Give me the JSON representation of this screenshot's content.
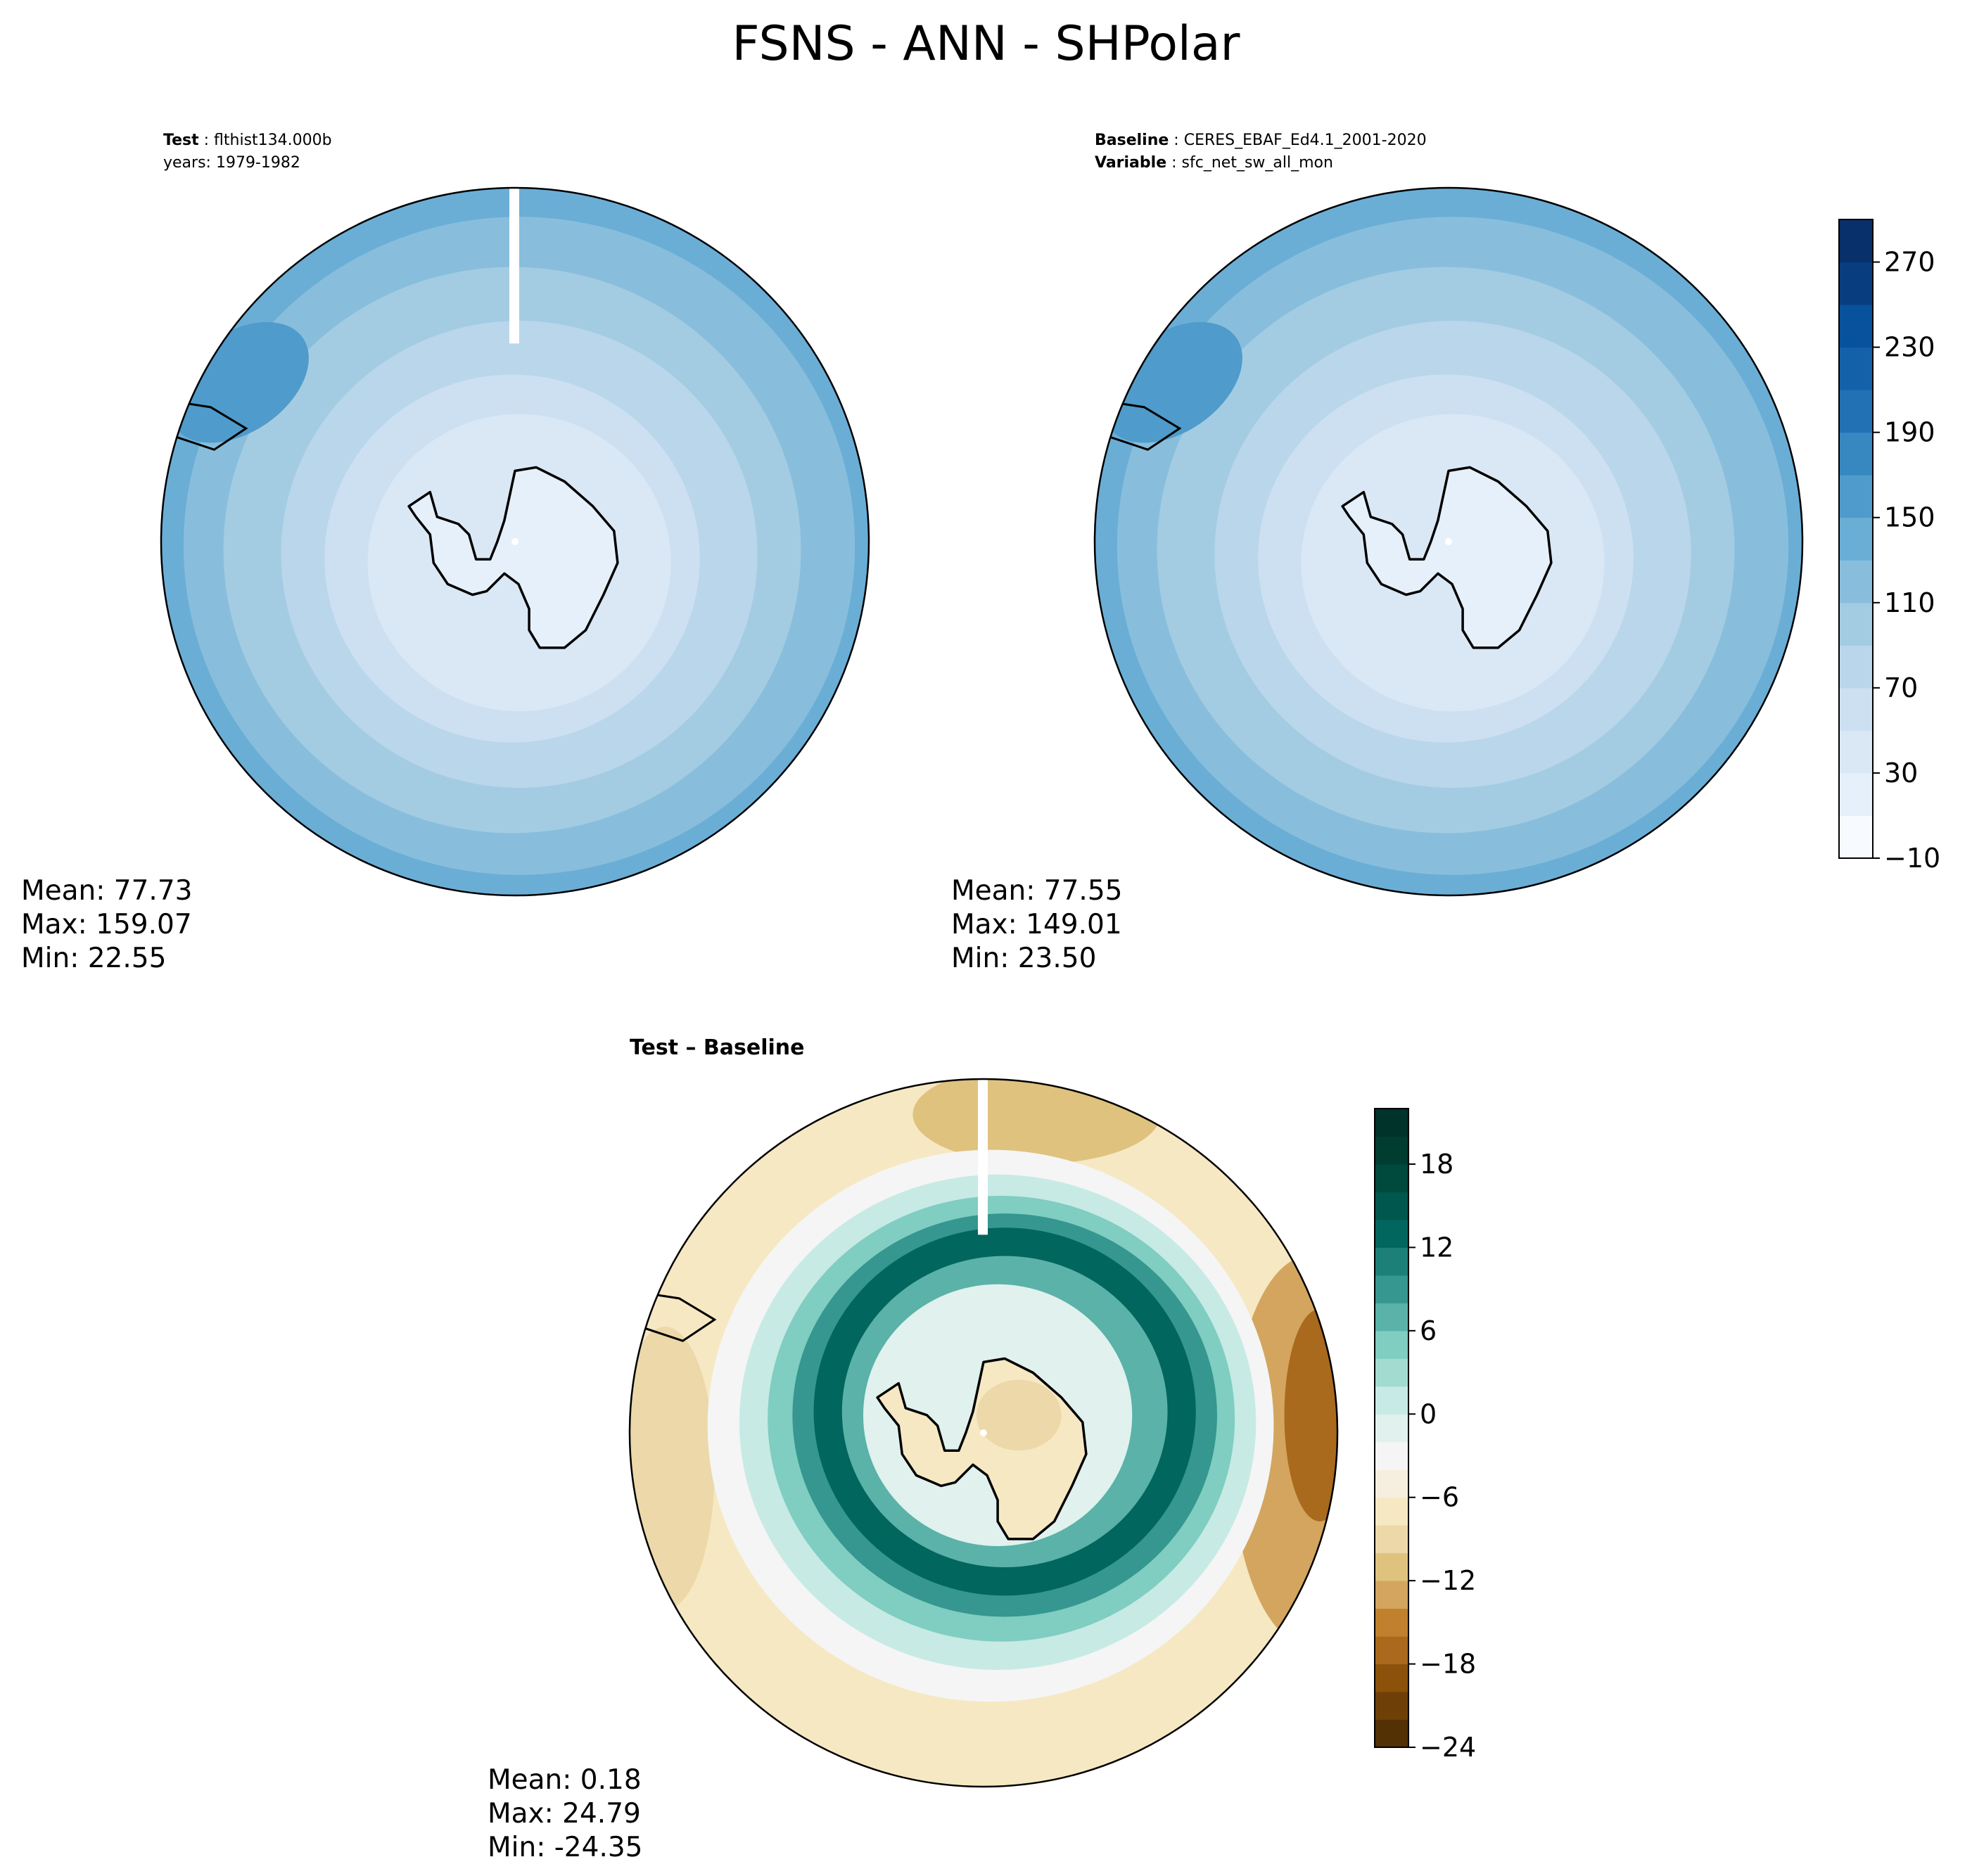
{
  "title": "FSNS - ANN - SHPolar",
  "panels": {
    "test": {
      "label_key": "Test",
      "label_value": "flthist134.000b",
      "line2": "years: 1979-1982",
      "stats": [
        "Mean: 77.73",
        "Max: 159.07",
        "Min: 22.55"
      ]
    },
    "baseline": {
      "label_key": "Baseline",
      "label_value": "CERES_EBAF_Ed4.1_2001-2020",
      "var_key": "Variable",
      "var_value": "sfc_net_sw_all_mon",
      "stats": [
        "Mean: 77.55",
        "Max: 149.01",
        "Min: 23.50"
      ]
    },
    "diff": {
      "label": "Test – Baseline",
      "stats": [
        "Mean:  0.18",
        "Max: 24.79",
        "Min: -24.35"
      ]
    }
  },
  "chart_data": [
    {
      "type": "heatmap",
      "projection": "south polar stereographic",
      "panel": "test",
      "colormap": "Blues",
      "colorbar": {
        "ticks": [
          -10,
          30,
          70,
          110,
          150,
          190,
          230,
          270
        ],
        "tick_labels": [
          "−10",
          "30",
          "70",
          "110",
          "150",
          "190",
          "230",
          "270"
        ],
        "range": [
          -10,
          290
        ],
        "levels": 15
      },
      "mean": 77.73,
      "max": 159.07,
      "min": 22.55
    },
    {
      "type": "heatmap",
      "projection": "south polar stereographic",
      "panel": "baseline",
      "colormap": "Blues",
      "colorbar": "shared with test",
      "mean": 77.55,
      "max": 149.01,
      "min": 23.5
    },
    {
      "type": "heatmap",
      "projection": "south polar stereographic",
      "panel": "test - baseline",
      "colormap": "BrBG",
      "colorbar": {
        "ticks": [
          -24,
          -18,
          -12,
          -6,
          0,
          6,
          12,
          18
        ],
        "tick_labels": [
          "−24",
          "−18",
          "−12",
          "−6",
          "0",
          "6",
          "12",
          "18"
        ],
        "range": [
          -24,
          22
        ],
        "levels": 23
      },
      "mean": 0.18,
      "max": 24.79,
      "min": -24.35
    }
  ],
  "colors": {
    "blues": [
      "#f7fbff",
      "#e6f0fa",
      "#dae8f5",
      "#cde0f1",
      "#bad6eb",
      "#a3cce3",
      "#88bedc",
      "#6aaed6",
      "#4f9bcb",
      "#3787c0",
      "#2271b5",
      "#1561a9",
      "#08519c",
      "#083d7f",
      "#08306b"
    ],
    "brbg": [
      "#543005",
      "#6e4008",
      "#8c510a",
      "#a96a1d",
      "#bf812d",
      "#d3a55e",
      "#dfc27d",
      "#ecd8a8",
      "#f6e8c3",
      "#f6efdf",
      "#f5f5f5",
      "#e0f1ee",
      "#c7eae5",
      "#a4dbd1",
      "#80cdc1",
      "#5ab2a8",
      "#35978f",
      "#1c8078",
      "#01665e",
      "#00574d",
      "#00493d",
      "#003c30",
      "#00332a"
    ]
  }
}
